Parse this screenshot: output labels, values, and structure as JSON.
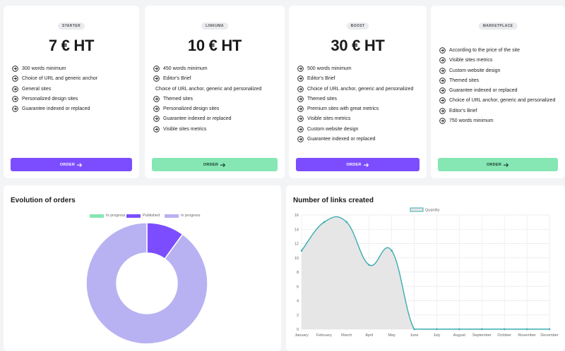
{
  "plans": [
    {
      "badge": "STARTER",
      "price": "7 € HT",
      "features": [
        {
          "text": "300 words minimum",
          "icon": true
        },
        {
          "text": "Choice of URL and generic anchor",
          "icon": true
        },
        {
          "text": "General sites",
          "icon": true
        },
        {
          "text": "Personalized design sites",
          "icon": true
        },
        {
          "text": "Guarantee indexed or replaced",
          "icon": true
        }
      ],
      "button": "ORDER",
      "button_style": "purple"
    },
    {
      "badge": "LINKUMA",
      "price": "10 € HT",
      "features": [
        {
          "text": "450 words minimum",
          "icon": true
        },
        {
          "text": "Editor's Brief",
          "icon": true
        },
        {
          "text": "Choice of URL anchor, generic and personalized",
          "icon": false
        },
        {
          "text": "Themed sites",
          "icon": true
        },
        {
          "text": "Personalized design sites",
          "icon": true
        },
        {
          "text": "Guarantee indexed or replaced",
          "icon": true
        },
        {
          "text": "Visible sites metrics",
          "icon": true
        }
      ],
      "button": "ORDER",
      "button_style": "green"
    },
    {
      "badge": "BOOST",
      "price": "30 € HT",
      "features": [
        {
          "text": "500 words minimum",
          "icon": true
        },
        {
          "text": "Editor's Brief",
          "icon": true
        },
        {
          "text": "Choice of URL anchor, generic and personalized",
          "icon": true
        },
        {
          "text": "Themed sites",
          "icon": true
        },
        {
          "text": "Premium sites with great metrics",
          "icon": true
        },
        {
          "text": "Visible sites metrics",
          "icon": true
        },
        {
          "text": "Custom website design",
          "icon": true
        },
        {
          "text": "Guarantee indexed or replaced",
          "icon": true
        }
      ],
      "button": "ORDER",
      "button_style": "purple"
    },
    {
      "badge": "MARKETPLACE",
      "price": "",
      "features": [
        {
          "text": "According to the price of the site",
          "icon": true
        },
        {
          "text": "Visible sites metrics",
          "icon": true
        },
        {
          "text": "Custom website design",
          "icon": true
        },
        {
          "text": "Themed sites",
          "icon": true
        },
        {
          "text": "Guarantee indexed or replaced",
          "icon": true
        },
        {
          "text": "Choice of URL anchor, generic and personalized",
          "icon": true
        },
        {
          "text": "Editor's Brief",
          "icon": true
        },
        {
          "text": "750 words minimum",
          "icon": true
        }
      ],
      "button": "ORDER",
      "button_style": "green"
    }
  ],
  "orders_panel": {
    "title": "Evolution of orders"
  },
  "links_panel": {
    "title": "Number of links created"
  },
  "colors": {
    "purple": "#7c4dff",
    "green": "#86e6b4",
    "donut_progress": "#86e6b4",
    "donut_published": "#7c4dff",
    "donut_inprogress2": "#b8b2f2",
    "line": "#3aacb0",
    "area": "#e6e6e6"
  },
  "chart_data": [
    {
      "type": "pie",
      "variant": "doughnut",
      "title": "Evolution of orders",
      "legend_position": "top",
      "series": [
        {
          "name": "In progress",
          "value": 0,
          "color": "#86e6b4"
        },
        {
          "name": "Published",
          "value": 1,
          "color": "#7c4dff"
        },
        {
          "name": "In progress",
          "value": 9,
          "color": "#b8b2f2"
        }
      ]
    },
    {
      "type": "area",
      "title": "Number of links created",
      "legend_position": "top",
      "categories": [
        "January",
        "February",
        "March",
        "April",
        "May",
        "June",
        "July",
        "August",
        "September",
        "October",
        "November",
        "December"
      ],
      "series": [
        {
          "name": "Quantity",
          "values": [
            11,
            15,
            15,
            9,
            11,
            0,
            0,
            0,
            0,
            0,
            0,
            0
          ]
        }
      ],
      "ylim": [
        0,
        16
      ],
      "yticks": [
        0,
        2,
        4,
        6,
        8,
        10,
        12,
        14,
        16
      ],
      "grid": true
    }
  ]
}
